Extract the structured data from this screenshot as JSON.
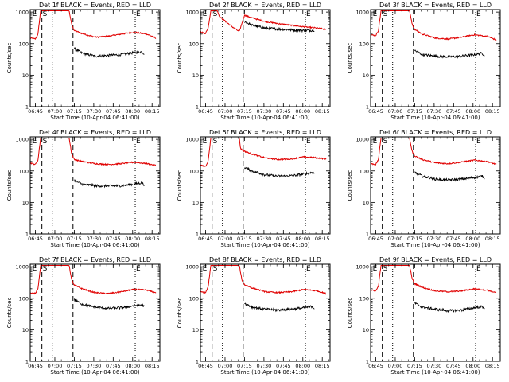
{
  "panel_titles": [
    "Det 1f BLACK = Events, RED = LLD",
    "Det 2f BLACK = Events, RED = LLD",
    "Det 3f BLACK = Events, RED = LLD",
    "Det 4f BLACK = Events, RED = LLD",
    "Det 5f BLACK = Events, RED = LLD",
    "Det 6f BLACK = Events, RED = LLD",
    "Det 7f BLACK = Events, RED = LLD",
    "Det 8f BLACK = Events, RED = LLD",
    "Det 9f BLACK = Events, RED = LLD"
  ],
  "xlabel": "Start Time (10-Apr-04 06:41:00)",
  "ylabel": "Counts/sec",
  "colors": {
    "events": "#000000",
    "lld": "#e00000",
    "background": "#ffffff"
  },
  "chart_data": {
    "type": "line",
    "layout": "3x3 grid",
    "x_unit": "minutes after 06:41:00",
    "xlim": [
      0,
      100
    ],
    "x_ticks": [
      4,
      19,
      34,
      49,
      64,
      79,
      94
    ],
    "x_tick_labels": [
      "06:45",
      "07:00",
      "07:15",
      "07:30",
      "07:45",
      "08:00",
      "08:15"
    ],
    "ylim": [
      1,
      1200
    ],
    "yscale": "log",
    "y_ticks": [
      1,
      10,
      100,
      1000
    ],
    "y_tick_labels": [
      "1",
      "10",
      "100",
      "1000"
    ],
    "legend": "in title",
    "markers": {
      "dashed_x": [
        9,
        33
      ],
      "dotted_x": [
        17,
        81
      ],
      "flags": [
        {
          "label": "E",
          "x": 1
        },
        {
          "label": "S",
          "x": 9
        },
        {
          "label": "E",
          "x": 81
        }
      ]
    },
    "panels": [
      {
        "lld": [
          [
            0,
            150
          ],
          [
            4,
            140
          ],
          [
            6,
            200
          ],
          [
            8,
            1100
          ],
          [
            9,
            1100
          ],
          [
            30,
            1100
          ],
          [
            32,
            400
          ],
          [
            34,
            260
          ],
          [
            40,
            210
          ],
          [
            50,
            160
          ],
          [
            60,
            170
          ],
          [
            70,
            200
          ],
          [
            80,
            230
          ],
          [
            90,
            200
          ],
          [
            97,
            150
          ]
        ],
        "events": [
          [
            34,
            70
          ],
          [
            40,
            50
          ],
          [
            50,
            40
          ],
          [
            60,
            42
          ],
          [
            70,
            45
          ],
          [
            80,
            52
          ],
          [
            86,
            55
          ],
          [
            88,
            48
          ]
        ]
      },
      {
        "lld": [
          [
            0,
            230
          ],
          [
            4,
            210
          ],
          [
            6,
            320
          ],
          [
            8,
            1100
          ],
          [
            13,
            1100
          ],
          [
            15,
            700
          ],
          [
            20,
            480
          ],
          [
            25,
            330
          ],
          [
            30,
            240
          ],
          [
            34,
            800
          ],
          [
            40,
            650
          ],
          [
            50,
            500
          ],
          [
            60,
            430
          ],
          [
            70,
            380
          ],
          [
            80,
            340
          ],
          [
            90,
            310
          ],
          [
            97,
            280
          ]
        ],
        "events": [
          [
            34,
            500
          ],
          [
            40,
            380
          ],
          [
            50,
            310
          ],
          [
            60,
            290
          ],
          [
            70,
            270
          ],
          [
            80,
            260
          ],
          [
            88,
            265
          ]
        ]
      },
      {
        "lld": [
          [
            0,
            190
          ],
          [
            4,
            180
          ],
          [
            6,
            260
          ],
          [
            8,
            1100
          ],
          [
            9,
            1100
          ],
          [
            30,
            1100
          ],
          [
            32,
            420
          ],
          [
            34,
            280
          ],
          [
            40,
            200
          ],
          [
            50,
            150
          ],
          [
            60,
            140
          ],
          [
            70,
            160
          ],
          [
            80,
            190
          ],
          [
            90,
            170
          ],
          [
            97,
            130
          ]
        ],
        "events": [
          [
            34,
            60
          ],
          [
            40,
            45
          ],
          [
            50,
            40
          ],
          [
            60,
            38
          ],
          [
            70,
            40
          ],
          [
            80,
            45
          ],
          [
            86,
            50
          ],
          [
            88,
            42
          ]
        ]
      },
      {
        "lld": [
          [
            0,
            180
          ],
          [
            4,
            160
          ],
          [
            6,
            220
          ],
          [
            8,
            1100
          ],
          [
            9,
            1100
          ],
          [
            30,
            1100
          ],
          [
            32,
            350
          ],
          [
            34,
            230
          ],
          [
            40,
            200
          ],
          [
            50,
            170
          ],
          [
            60,
            160
          ],
          [
            70,
            170
          ],
          [
            80,
            190
          ],
          [
            90,
            170
          ],
          [
            97,
            150
          ]
        ],
        "events": [
          [
            34,
            50
          ],
          [
            40,
            38
          ],
          [
            50,
            34
          ],
          [
            60,
            33
          ],
          [
            70,
            34
          ],
          [
            80,
            38
          ],
          [
            86,
            42
          ],
          [
            88,
            36
          ]
        ]
      },
      {
        "lld": [
          [
            0,
            150
          ],
          [
            4,
            140
          ],
          [
            6,
            210
          ],
          [
            8,
            1100
          ],
          [
            9,
            1100
          ],
          [
            30,
            1100
          ],
          [
            31,
            500
          ],
          [
            34,
            420
          ],
          [
            40,
            340
          ],
          [
            50,
            260
          ],
          [
            60,
            230
          ],
          [
            70,
            240
          ],
          [
            80,
            280
          ],
          [
            90,
            260
          ],
          [
            97,
            240
          ]
        ],
        "events": [
          [
            34,
            130
          ],
          [
            40,
            100
          ],
          [
            50,
            75
          ],
          [
            60,
            68
          ],
          [
            70,
            70
          ],
          [
            80,
            80
          ],
          [
            86,
            90
          ],
          [
            88,
            82
          ]
        ]
      },
      {
        "lld": [
          [
            0,
            170
          ],
          [
            4,
            160
          ],
          [
            6,
            230
          ],
          [
            8,
            1100
          ],
          [
            9,
            1100
          ],
          [
            30,
            1100
          ],
          [
            32,
            420
          ],
          [
            34,
            300
          ],
          [
            40,
            230
          ],
          [
            50,
            180
          ],
          [
            60,
            170
          ],
          [
            70,
            190
          ],
          [
            80,
            220
          ],
          [
            90,
            200
          ],
          [
            97,
            160
          ]
        ],
        "events": [
          [
            34,
            90
          ],
          [
            40,
            68
          ],
          [
            50,
            55
          ],
          [
            60,
            52
          ],
          [
            70,
            55
          ],
          [
            80,
            62
          ],
          [
            86,
            68
          ],
          [
            88,
            60
          ]
        ]
      },
      {
        "lld": [
          [
            0,
            150
          ],
          [
            4,
            140
          ],
          [
            6,
            200
          ],
          [
            8,
            1100
          ],
          [
            9,
            1100
          ],
          [
            30,
            1100
          ],
          [
            32,
            380
          ],
          [
            34,
            260
          ],
          [
            40,
            200
          ],
          [
            50,
            150
          ],
          [
            60,
            140
          ],
          [
            70,
            160
          ],
          [
            80,
            190
          ],
          [
            90,
            180
          ],
          [
            97,
            150
          ]
        ],
        "events": [
          [
            34,
            90
          ],
          [
            40,
            65
          ],
          [
            50,
            52
          ],
          [
            60,
            48
          ],
          [
            70,
            50
          ],
          [
            80,
            58
          ],
          [
            86,
            62
          ],
          [
            88,
            55
          ]
        ]
      },
      {
        "lld": [
          [
            0,
            160
          ],
          [
            4,
            150
          ],
          [
            6,
            230
          ],
          [
            8,
            1100
          ],
          [
            9,
            1100
          ],
          [
            30,
            1100
          ],
          [
            32,
            380
          ],
          [
            34,
            270
          ],
          [
            40,
            210
          ],
          [
            50,
            160
          ],
          [
            60,
            150
          ],
          [
            70,
            160
          ],
          [
            80,
            190
          ],
          [
            90,
            170
          ],
          [
            97,
            140
          ]
        ],
        "events": [
          [
            34,
            70
          ],
          [
            40,
            52
          ],
          [
            50,
            45
          ],
          [
            60,
            42
          ],
          [
            70,
            45
          ],
          [
            80,
            50
          ],
          [
            86,
            55
          ],
          [
            88,
            48
          ]
        ]
      },
      {
        "lld": [
          [
            0,
            180
          ],
          [
            4,
            170
          ],
          [
            6,
            240
          ],
          [
            8,
            1100
          ],
          [
            9,
            1100
          ],
          [
            30,
            1100
          ],
          [
            32,
            420
          ],
          [
            34,
            290
          ],
          [
            40,
            220
          ],
          [
            50,
            170
          ],
          [
            60,
            160
          ],
          [
            70,
            170
          ],
          [
            80,
            200
          ],
          [
            90,
            180
          ],
          [
            97,
            150
          ]
        ],
        "events": [
          [
            34,
            70
          ],
          [
            40,
            52
          ],
          [
            50,
            45
          ],
          [
            60,
            40
          ],
          [
            70,
            42
          ],
          [
            80,
            50
          ],
          [
            86,
            55
          ],
          [
            88,
            48
          ]
        ]
      }
    ]
  }
}
